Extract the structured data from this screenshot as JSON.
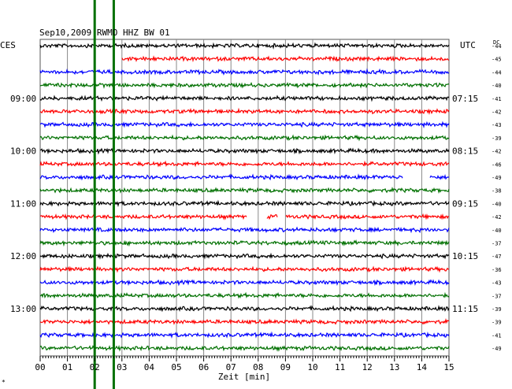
{
  "chart_data": {
    "type": "line",
    "title": "Sep10,2009  RWMO HHZ BW 01",
    "left_axis_title": "CES",
    "right_axis_title": "UTC",
    "dc_label": "DC",
    "xlabel": "Zeit [min]",
    "x_ticks": [
      "00",
      "01",
      "02",
      "03",
      "04",
      "05",
      "06",
      "07",
      "08",
      "09",
      "10",
      "11",
      "12",
      "13",
      "14",
      "15"
    ],
    "xlim": [
      0,
      15
    ],
    "left_time_labels": [
      {
        "trace": 4,
        "text": "09:00"
      },
      {
        "trace": 8,
        "text": "10:00"
      },
      {
        "trace": 12,
        "text": "11:00"
      },
      {
        "trace": 16,
        "text": "12:00"
      },
      {
        "trace": 20,
        "text": "13:00"
      }
    ],
    "right_time_labels": [
      {
        "trace": 4,
        "text": "07:15"
      },
      {
        "trace": 8,
        "text": "08:15"
      },
      {
        "trace": 12,
        "text": "09:15"
      },
      {
        "trace": 16,
        "text": "10:15"
      },
      {
        "trace": 20,
        "text": "11:15"
      }
    ],
    "trace_colors": [
      "#000000",
      "#ff0000",
      "#0000ff",
      "#007000"
    ],
    "dc_offsets": [
      "-44",
      "-45",
      "-44",
      "-40",
      "-41",
      "-42",
      "-43",
      "-39",
      "-42",
      "-46",
      "-49",
      "-38",
      "-40",
      "-42",
      "-40",
      "-37",
      "-47",
      "-36",
      "-43",
      "-37",
      "-39",
      "-39",
      "-41",
      "-49"
    ],
    "events": [
      {
        "name": "large arrival 1",
        "minute": 2.0
      },
      {
        "name": "large arrival 2",
        "minute": 2.7
      }
    ],
    "gaps": [
      {
        "trace": 1,
        "from_min": 0,
        "to_min": 3.0
      },
      {
        "trace": 10,
        "from_min": 13.3,
        "to_min": 14.3
      },
      {
        "trace": 13,
        "from_min": 7.6,
        "to_min": 8.3
      },
      {
        "trace": 13,
        "from_min": 8.7,
        "to_min": 9.0
      }
    ]
  },
  "footer_mark": "*"
}
